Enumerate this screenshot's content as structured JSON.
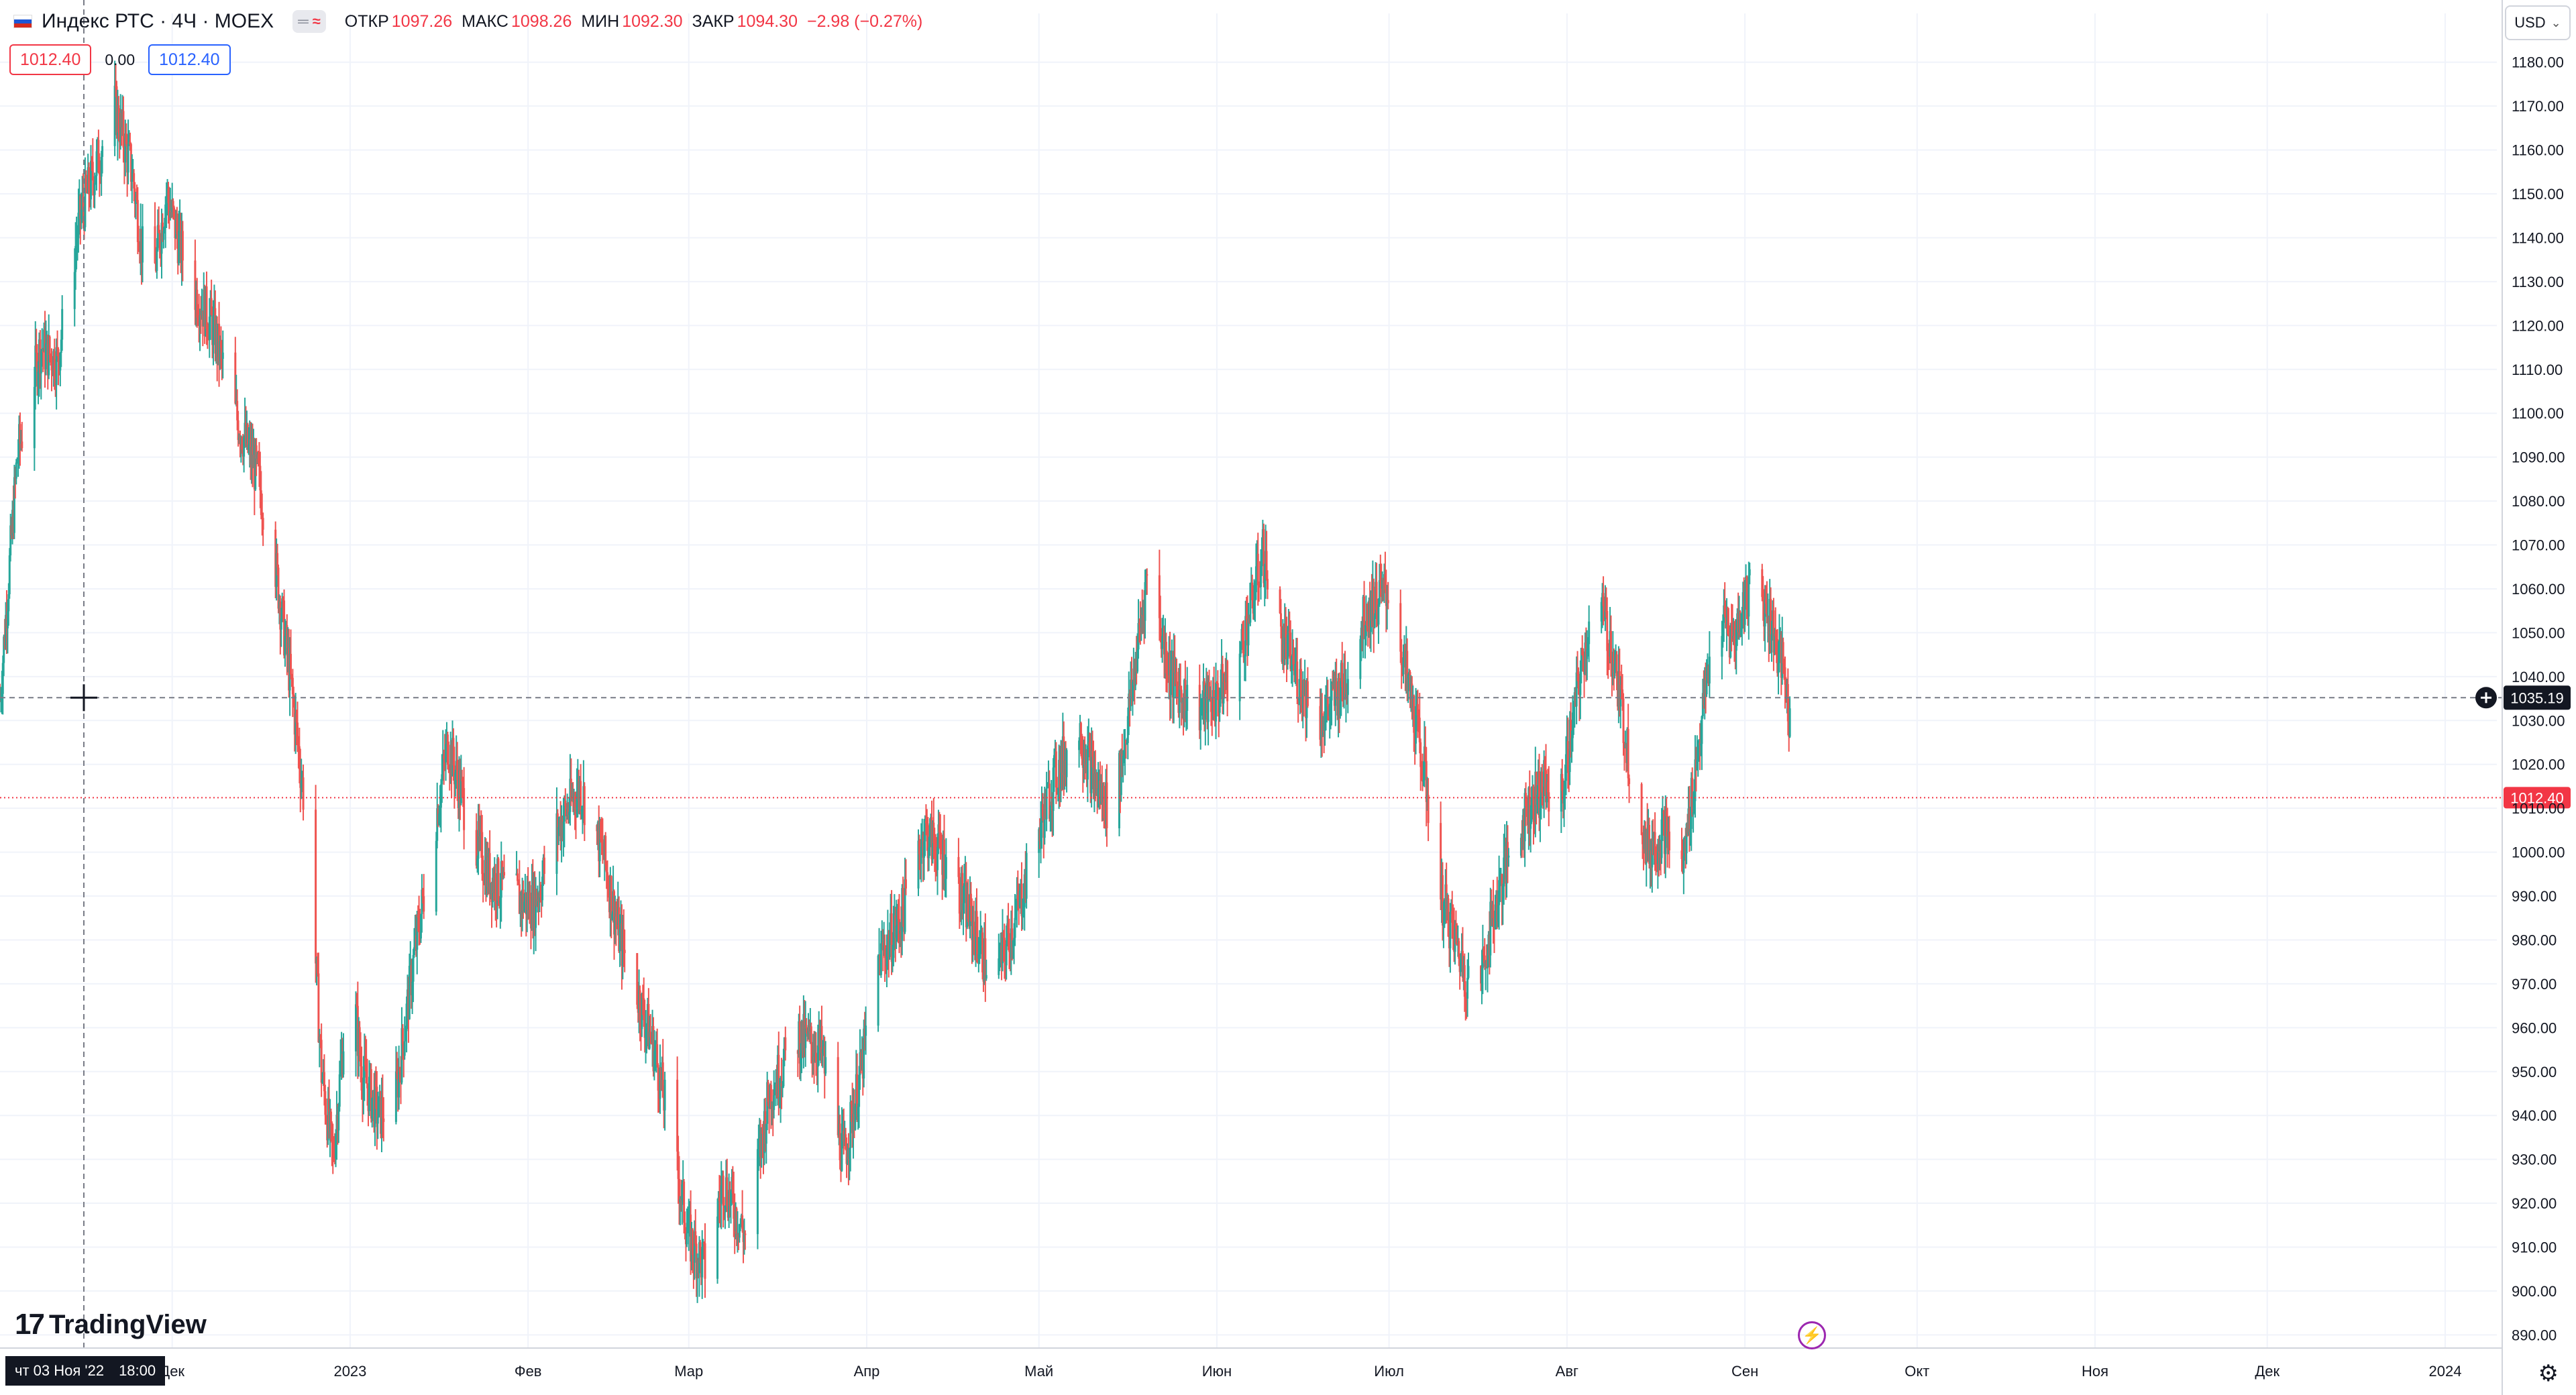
{
  "header": {
    "symbol_title": "Индекс РТС · 4Ч · MOEX",
    "mode_icons": [
      "minus-icon",
      "wave-icon"
    ],
    "open_label": "ОТКР",
    "open_value": "1097.26",
    "high_label": "МАКС",
    "high_value": "1098.26",
    "low_label": "МИН",
    "low_value": "1092.30",
    "close_label": "ЗАКР",
    "close_value": "1094.30",
    "change": "−2.98 (−0.27%)"
  },
  "quote": {
    "sell": "1012.40",
    "spread": "0.00",
    "buy": "1012.40"
  },
  "currency": "USD",
  "logo_text": "TradingView",
  "crosshair": {
    "date": "чт 03 Ноя '22",
    "time": "18:00",
    "price": "1035.19"
  },
  "last_price": "1012.40",
  "colors": {
    "up": "#26a69a",
    "down": "#ef5350",
    "grid": "#f0f3fa",
    "last_price": "#f23645"
  },
  "chart_data": {
    "type": "candlestick",
    "title": "Индекс РТС · 4Ч · MOEX",
    "y_ticks": [
      "890.00",
      "900.00",
      "910.00",
      "920.00",
      "930.00",
      "940.00",
      "950.00",
      "960.00",
      "970.00",
      "980.00",
      "990.00",
      "1000.00",
      "1010.00",
      "1020.00",
      "1030.00",
      "1040.00",
      "1050.00",
      "1060.00",
      "1070.00",
      "1080.00",
      "1090.00",
      "1100.00",
      "1110.00",
      "1120.00",
      "1130.00",
      "1140.00",
      "1150.00",
      "1160.00",
      "1170.00",
      "1180.00"
    ],
    "ylim": [
      887,
      1185
    ],
    "x_ticks": [
      {
        "label": "Дек",
        "date": "2022-12-01"
      },
      {
        "label": "2023",
        "date": "2023-01-01"
      },
      {
        "label": "Фев",
        "date": "2023-02-01"
      },
      {
        "label": "Мар",
        "date": "2023-03-01"
      },
      {
        "label": "Апр",
        "date": "2023-04-01"
      },
      {
        "label": "Май",
        "date": "2023-05-01"
      },
      {
        "label": "Июн",
        "date": "2023-06-01"
      },
      {
        "label": "Июл",
        "date": "2023-07-01"
      },
      {
        "label": "Авг",
        "date": "2023-08-01"
      },
      {
        "label": "Сен",
        "date": "2023-09-01"
      },
      {
        "label": "Окт",
        "date": "2023-10-01"
      },
      {
        "label": "Ноя",
        "date": "2023-11-01"
      },
      {
        "label": "Дек",
        "date": "2023-12-01"
      },
      {
        "label": "2024",
        "date": "2024-01-01"
      }
    ],
    "xlim": [
      "2022-11-01",
      "2024-01-10"
    ],
    "grid": true,
    "path_anchors": [
      {
        "date": "2022-11-01",
        "close": 1035
      },
      {
        "date": "2022-11-04",
        "close": 1090
      },
      {
        "date": "2022-11-08",
        "close": 1115
      },
      {
        "date": "2022-11-11",
        "close": 1112
      },
      {
        "date": "2022-11-15",
        "close": 1145
      },
      {
        "date": "2022-11-21",
        "close": 1170
      },
      {
        "date": "2022-11-24",
        "close": 1155
      },
      {
        "date": "2022-11-27",
        "close": 1125
      },
      {
        "date": "2022-11-30",
        "close": 1150
      },
      {
        "date": "2022-12-04",
        "close": 1130
      },
      {
        "date": "2022-12-08",
        "close": 1120
      },
      {
        "date": "2022-12-12",
        "close": 1100
      },
      {
        "date": "2022-12-16",
        "close": 1085
      },
      {
        "date": "2022-12-19",
        "close": 1065
      },
      {
        "date": "2022-12-22",
        "close": 1035
      },
      {
        "date": "2022-12-25",
        "close": 1000
      },
      {
        "date": "2022-12-27",
        "close": 950
      },
      {
        "date": "2022-12-29",
        "close": 930
      },
      {
        "date": "2023-01-01",
        "close": 975
      },
      {
        "date": "2023-01-03",
        "close": 950
      },
      {
        "date": "2023-01-06",
        "close": 940
      },
      {
        "date": "2023-01-09",
        "close": 945
      },
      {
        "date": "2023-01-12",
        "close": 975
      },
      {
        "date": "2023-01-15",
        "close": 1000
      },
      {
        "date": "2023-01-18",
        "close": 1025
      },
      {
        "date": "2023-01-21",
        "close": 1010
      },
      {
        "date": "2023-01-25",
        "close": 995
      },
      {
        "date": "2023-01-29",
        "close": 990
      },
      {
        "date": "2023-02-02",
        "close": 988
      },
      {
        "date": "2023-02-06",
        "close": 1005
      },
      {
        "date": "2023-02-10",
        "close": 1015
      },
      {
        "date": "2023-02-14",
        "close": 1000
      },
      {
        "date": "2023-02-17",
        "close": 980
      },
      {
        "date": "2023-02-20",
        "close": 968
      },
      {
        "date": "2023-02-23",
        "close": 955
      },
      {
        "date": "2023-02-26",
        "close": 935
      },
      {
        "date": "2023-03-01",
        "close": 912
      },
      {
        "date": "2023-03-04",
        "close": 905
      },
      {
        "date": "2023-03-07",
        "close": 925
      },
      {
        "date": "2023-03-11",
        "close": 912
      },
      {
        "date": "2023-03-15",
        "close": 945
      },
      {
        "date": "2023-03-20",
        "close": 958
      },
      {
        "date": "2023-03-24",
        "close": 955
      },
      {
        "date": "2023-03-28",
        "close": 930
      },
      {
        "date": "2023-03-31",
        "close": 950
      },
      {
        "date": "2023-04-03",
        "close": 975
      },
      {
        "date": "2023-04-07",
        "close": 985
      },
      {
        "date": "2023-04-11",
        "close": 1005
      },
      {
        "date": "2023-04-15",
        "close": 998
      },
      {
        "date": "2023-04-19",
        "close": 985
      },
      {
        "date": "2023-04-23",
        "close": 970
      },
      {
        "date": "2023-04-27",
        "close": 985
      },
      {
        "date": "2023-05-01",
        "close": 1005
      },
      {
        "date": "2023-05-04",
        "close": 1018
      },
      {
        "date": "2023-05-08",
        "close": 1028
      },
      {
        "date": "2023-05-11",
        "close": 1015
      },
      {
        "date": "2023-05-14",
        "close": 1008
      },
      {
        "date": "2023-05-17",
        "close": 1035
      },
      {
        "date": "2023-05-20",
        "close": 1065
      },
      {
        "date": "2023-05-24",
        "close": 1040
      },
      {
        "date": "2023-05-28",
        "close": 1032
      },
      {
        "date": "2023-06-01",
        "close": 1035
      },
      {
        "date": "2023-06-05",
        "close": 1045
      },
      {
        "date": "2023-06-09",
        "close": 1068
      },
      {
        "date": "2023-06-12",
        "close": 1050
      },
      {
        "date": "2023-06-15",
        "close": 1040
      },
      {
        "date": "2023-06-19",
        "close": 1030
      },
      {
        "date": "2023-06-23",
        "close": 1038
      },
      {
        "date": "2023-06-27",
        "close": 1055
      },
      {
        "date": "2023-07-01",
        "close": 1060
      },
      {
        "date": "2023-07-04",
        "close": 1040
      },
      {
        "date": "2023-07-07",
        "close": 1020
      },
      {
        "date": "2023-07-10",
        "close": 990
      },
      {
        "date": "2023-07-13",
        "close": 978
      },
      {
        "date": "2023-07-16",
        "close": 965
      },
      {
        "date": "2023-07-19",
        "close": 985
      },
      {
        "date": "2023-07-22",
        "close": 1000
      },
      {
        "date": "2023-07-25",
        "close": 1010
      },
      {
        "date": "2023-07-28",
        "close": 1015
      },
      {
        "date": "2023-07-31",
        "close": 1012
      },
      {
        "date": "2023-08-03",
        "close": 1038
      },
      {
        "date": "2023-08-06",
        "close": 1060
      },
      {
        "date": "2023-08-09",
        "close": 1045
      },
      {
        "date": "2023-08-12",
        "close": 1020
      },
      {
        "date": "2023-08-15",
        "close": 1000
      },
      {
        "date": "2023-08-18",
        "close": 1005
      },
      {
        "date": "2023-08-21",
        "close": 995
      },
      {
        "date": "2023-08-24",
        "close": 1025
      },
      {
        "date": "2023-08-27",
        "close": 1055
      },
      {
        "date": "2023-08-30",
        "close": 1048
      },
      {
        "date": "2023-09-02",
        "close": 1062
      },
      {
        "date": "2023-09-05",
        "close": 1055
      },
      {
        "date": "2023-09-08",
        "close": 1040
      },
      {
        "date": "2023-09-10",
        "close": 1012.4
      }
    ]
  }
}
